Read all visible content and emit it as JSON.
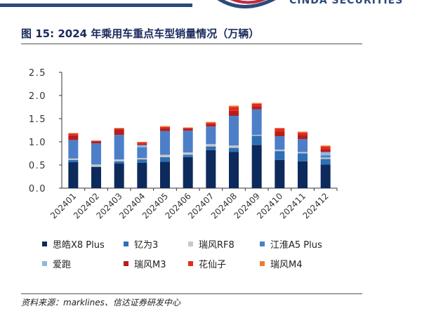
{
  "header": {
    "brand_text": "CINDA SECURITIES",
    "band_color": "#2c4a7c",
    "logo_colors": [
      "#2c4a7c",
      "#c0283c"
    ]
  },
  "figure": {
    "title": "图 15:  2024 年乘用车重点车型销量情况（万辆）",
    "source": "资料来源：marklines、信达证券研发中心"
  },
  "chart_data": {
    "type": "bar",
    "stacked": true,
    "categories": [
      "202401",
      "202402",
      "202403",
      "202404",
      "202405",
      "202406",
      "202407",
      "202408",
      "202409",
      "202410",
      "202411",
      "202412"
    ],
    "ylim": [
      0,
      2.5
    ],
    "yticks": [
      "0.0",
      "0.5",
      "1.0",
      "1.5",
      "2.0",
      "2.5"
    ],
    "grid": false,
    "legend_position": "bottom",
    "xlabel": "",
    "ylabel": "",
    "series": [
      {
        "name": "思皓X8 Plus",
        "color": "#0d2a5c",
        "values": [
          0.56,
          0.46,
          0.53,
          0.55,
          0.57,
          0.67,
          0.82,
          0.78,
          0.93,
          0.61,
          0.58,
          0.51
        ]
      },
      {
        "name": "钇为3",
        "color": "#2e6fb5",
        "values": [
          0.05,
          0.0,
          0.05,
          0.07,
          0.1,
          0.05,
          0.08,
          0.09,
          0.2,
          0.19,
          0.17,
          0.12
        ]
      },
      {
        "name": "瑞风RF8",
        "color": "#c8c8c8",
        "values": [
          0.03,
          0.05,
          0.04,
          0.03,
          0.05,
          0.05,
          0.05,
          0.05,
          0.02,
          0.03,
          0.03,
          0.03
        ]
      },
      {
        "name": "江淮A5 Plus",
        "color": "#4d7fc9",
        "values": [
          0.4,
          0.46,
          0.53,
          0.23,
          0.51,
          0.47,
          0.38,
          0.64,
          0.55,
          0.29,
          0.28,
          0.05
        ]
      },
      {
        "name": "爱跑",
        "color": "#8fb7e0",
        "values": [
          0.0,
          0.0,
          0.0,
          0.05,
          0.0,
          0.0,
          0.0,
          0.0,
          0.0,
          0.0,
          0.0,
          0.07
        ]
      },
      {
        "name": "瑞风M3",
        "color": "#b81d1d",
        "values": [
          0.1,
          0.03,
          0.12,
          0.03,
          0.07,
          0.04,
          0.05,
          0.11,
          0.07,
          0.1,
          0.09,
          0.06
        ]
      },
      {
        "name": "花仙子",
        "color": "#e52b1e",
        "values": [
          0.04,
          0.02,
          0.02,
          0.03,
          0.02,
          0.02,
          0.03,
          0.08,
          0.05,
          0.07,
          0.05,
          0.06
        ]
      },
      {
        "name": "瑞风M4",
        "color": "#ed7d31",
        "values": [
          0.01,
          0.01,
          0.01,
          0.01,
          0.02,
          0.01,
          0.02,
          0.03,
          0.02,
          0.01,
          0.02,
          0.02
        ]
      }
    ]
  }
}
